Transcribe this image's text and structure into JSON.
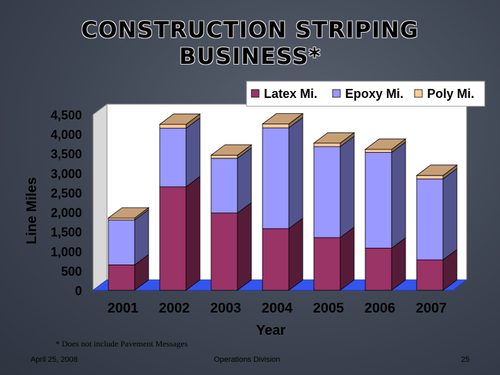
{
  "title_lines": [
    "CONSTRUCTION STRIPING",
    "BUSINESS*"
  ],
  "footnote": "* Does not include Pavement Messages",
  "footer": {
    "date": "April 25, 2008",
    "org": "Operations Division",
    "page": "25"
  },
  "colors": {
    "latex": "#9a3366",
    "epoxy": "#9999ff",
    "poly": "#ffcc99",
    "wall": "#ffffff",
    "floor": "#3355ee",
    "text": "#000000"
  },
  "chart_data": {
    "type": "bar",
    "stacked": true,
    "three_d": true,
    "xlabel": "Year",
    "ylabel": "Line Miles",
    "ylim": [
      0,
      4500
    ],
    "yticks": [
      0,
      500,
      1000,
      1500,
      2000,
      2500,
      3000,
      3500,
      4000,
      4500
    ],
    "ytick_labels": [
      "0",
      "500",
      "1,000",
      "1,500",
      "2,000",
      "2,500",
      "3,000",
      "3,500",
      "4,000",
      "4,500"
    ],
    "categories": [
      "2001",
      "2002",
      "2003",
      "2004",
      "2005",
      "2006",
      "2007"
    ],
    "series": [
      {
        "name": "Latex Mi.",
        "color_key": "latex",
        "values": [
          650,
          2650,
          1980,
          1580,
          1350,
          1080,
          780
        ]
      },
      {
        "name": "Epoxy Mi.",
        "color_key": "epoxy",
        "values": [
          1150,
          1500,
          1400,
          2580,
          2330,
          2450,
          2070
        ]
      },
      {
        "name": "Poly Mi.",
        "color_key": "poly",
        "values": [
          50,
          100,
          80,
          100,
          90,
          80,
          90
        ]
      }
    ],
    "legend": "top-right",
    "grid": false
  }
}
